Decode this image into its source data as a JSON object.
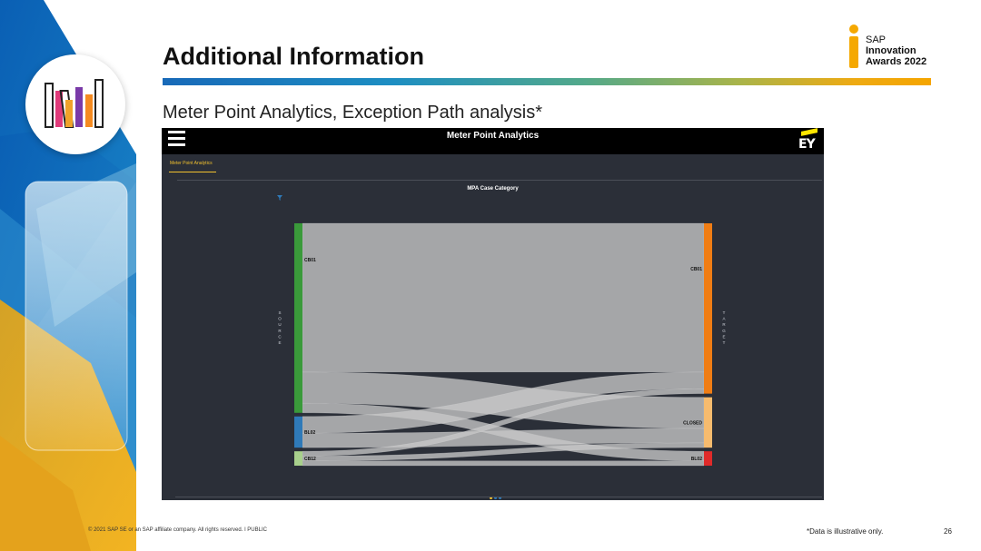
{
  "slide": {
    "title": "Additional Information",
    "subtitle": "Meter Point Analytics, Exception Path analysis*",
    "award": {
      "line1": "SAP",
      "line2": "Innovation",
      "line3": "Awards 2022"
    },
    "footer": {
      "copyright": "© 2021 SAP SE or an SAP affiliate company. All rights reserved.  ǀ  PUBLIC",
      "note": "*Data is illustrative only.",
      "page_number": "26"
    }
  },
  "app": {
    "title": "Meter Point Analytics",
    "brand": "EY",
    "tab_label": "Meter Point Analytics",
    "chart_title": "MPA Case Category"
  },
  "chart_data": {
    "type": "sankey",
    "title": "MPA Case Category",
    "source_axis_label": "SOURCE",
    "target_axis_label": "TARGET",
    "source_nodes": [
      {
        "name": "CB01",
        "color": "#3a9a3a"
      },
      {
        "name": "BL02",
        "color": "#2f7ab8"
      },
      {
        "name": "CB12",
        "color": "#a8d08c"
      }
    ],
    "target_nodes": [
      {
        "name": "CB01",
        "color": "#f07d14"
      },
      {
        "name": "CLOSED",
        "color": "#f6bb6e"
      },
      {
        "name": "BL02",
        "color": "#e02a2a"
      }
    ],
    "links": [
      {
        "source": "CB01",
        "target": "CB01",
        "value": 62
      },
      {
        "source": "CB01",
        "target": "CLOSED",
        "value": 13
      },
      {
        "source": "CB01",
        "target": "BL02",
        "value": 4
      },
      {
        "source": "BL02",
        "target": "CB01",
        "value": 7
      },
      {
        "source": "BL02",
        "target": "CLOSED",
        "value": 6
      },
      {
        "source": "CB12",
        "target": "CB01",
        "value": 2
      },
      {
        "source": "CB12",
        "target": "CLOSED",
        "value": 2
      },
      {
        "source": "CB12",
        "target": "BL02",
        "value": 2
      }
    ],
    "link_color": "#c8c8c8",
    "pager_colors": [
      "#f2c12e",
      "#2f7ab8",
      "#2f7ab8"
    ]
  }
}
